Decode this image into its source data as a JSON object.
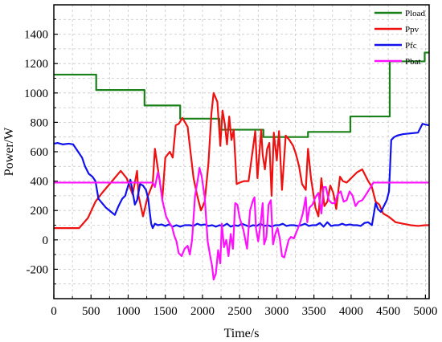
{
  "chart_data": {
    "type": "line",
    "xlabel": "Time/s",
    "ylabel": "Power/W",
    "xlim": [
      0,
      5050
    ],
    "ylim": [
      -400,
      1600
    ],
    "xticks": [
      0,
      500,
      1000,
      1500,
      2000,
      2500,
      3000,
      3500,
      4000,
      4500,
      5000
    ],
    "yticks": [
      -200,
      0,
      200,
      400,
      600,
      800,
      1000,
      1200,
      1400
    ],
    "grid": true,
    "legend_position": "top-right",
    "series": [
      {
        "name": "Pload",
        "color": "#1a801a",
        "points": [
          [
            0,
            1125
          ],
          [
            570,
            1125
          ],
          [
            570,
            1020
          ],
          [
            1220,
            1020
          ],
          [
            1220,
            915
          ],
          [
            1700,
            915
          ],
          [
            1700,
            825
          ],
          [
            2230,
            825
          ],
          [
            2230,
            750
          ],
          [
            2820,
            750
          ],
          [
            2820,
            700
          ],
          [
            3420,
            700
          ],
          [
            3420,
            735
          ],
          [
            3990,
            735
          ],
          [
            3990,
            840
          ],
          [
            4520,
            840
          ],
          [
            4520,
            1215
          ],
          [
            4990,
            1215
          ],
          [
            4990,
            1275
          ],
          [
            5050,
            1275
          ]
        ]
      },
      {
        "name": "Ppv",
        "color": "#ee1111",
        "points": [
          [
            0,
            80
          ],
          [
            340,
            80
          ],
          [
            460,
            150
          ],
          [
            560,
            260
          ],
          [
            650,
            320
          ],
          [
            750,
            380
          ],
          [
            900,
            470
          ],
          [
            980,
            420
          ],
          [
            1060,
            310
          ],
          [
            1120,
            470
          ],
          [
            1140,
            300
          ],
          [
            1200,
            160
          ],
          [
            1260,
            290
          ],
          [
            1330,
            380
          ],
          [
            1360,
            620
          ],
          [
            1410,
            450
          ],
          [
            1460,
            280
          ],
          [
            1500,
            560
          ],
          [
            1560,
            600
          ],
          [
            1600,
            560
          ],
          [
            1640,
            780
          ],
          [
            1680,
            790
          ],
          [
            1730,
            830
          ],
          [
            1800,
            770
          ],
          [
            1880,
            420
          ],
          [
            1930,
            300
          ],
          [
            1980,
            200
          ],
          [
            2030,
            260
          ],
          [
            2080,
            520
          ],
          [
            2120,
            860
          ],
          [
            2150,
            1000
          ],
          [
            2200,
            940
          ],
          [
            2240,
            640
          ],
          [
            2270,
            880
          ],
          [
            2300,
            790
          ],
          [
            2330,
            650
          ],
          [
            2360,
            840
          ],
          [
            2390,
            680
          ],
          [
            2420,
            750
          ],
          [
            2460,
            380
          ],
          [
            2500,
            390
          ],
          [
            2560,
            400
          ],
          [
            2620,
            400
          ],
          [
            2660,
            550
          ],
          [
            2710,
            740
          ],
          [
            2740,
            420
          ],
          [
            2790,
            750
          ],
          [
            2810,
            580
          ],
          [
            2840,
            480
          ],
          [
            2870,
            620
          ],
          [
            2900,
            660
          ],
          [
            2930,
            300
          ],
          [
            2960,
            730
          ],
          [
            3000,
            540
          ],
          [
            3030,
            740
          ],
          [
            3070,
            340
          ],
          [
            3120,
            710
          ],
          [
            3170,
            680
          ],
          [
            3220,
            640
          ],
          [
            3260,
            580
          ],
          [
            3300,
            500
          ],
          [
            3340,
            380
          ],
          [
            3390,
            340
          ],
          [
            3420,
            620
          ],
          [
            3460,
            420
          ],
          [
            3520,
            220
          ],
          [
            3560,
            160
          ],
          [
            3600,
            420
          ],
          [
            3640,
            230
          ],
          [
            3680,
            260
          ],
          [
            3720,
            370
          ],
          [
            3760,
            320
          ],
          [
            3800,
            210
          ],
          [
            3850,
            430
          ],
          [
            3890,
            400
          ],
          [
            3940,
            390
          ],
          [
            4000,
            420
          ],
          [
            4080,
            460
          ],
          [
            4150,
            480
          ],
          [
            4230,
            400
          ],
          [
            4280,
            360
          ],
          [
            4330,
            260
          ],
          [
            4380,
            240
          ],
          [
            4430,
            180
          ],
          [
            4500,
            160
          ],
          [
            4600,
            120
          ],
          [
            4700,
            110
          ],
          [
            4800,
            100
          ],
          [
            4900,
            95
          ],
          [
            5000,
            100
          ],
          [
            5050,
            100
          ]
        ]
      },
      {
        "name": "Pfc",
        "color": "#1111ee",
        "points": [
          [
            0,
            655
          ],
          [
            50,
            660
          ],
          [
            120,
            650
          ],
          [
            200,
            655
          ],
          [
            260,
            650
          ],
          [
            300,
            620
          ],
          [
            340,
            590
          ],
          [
            380,
            560
          ],
          [
            420,
            500
          ],
          [
            470,
            450
          ],
          [
            520,
            430
          ],
          [
            560,
            400
          ],
          [
            600,
            280
          ],
          [
            650,
            250
          ],
          [
            700,
            220
          ],
          [
            760,
            195
          ],
          [
            820,
            170
          ],
          [
            870,
            230
          ],
          [
            920,
            280
          ],
          [
            960,
            300
          ],
          [
            1000,
            370
          ],
          [
            1030,
            410
          ],
          [
            1060,
            330
          ],
          [
            1090,
            240
          ],
          [
            1120,
            270
          ],
          [
            1160,
            380
          ],
          [
            1200,
            370
          ],
          [
            1240,
            340
          ],
          [
            1270,
            280
          ],
          [
            1290,
            190
          ],
          [
            1310,
            110
          ],
          [
            1330,
            80
          ],
          [
            1360,
            110
          ],
          [
            1400,
            100
          ],
          [
            1450,
            105
          ],
          [
            1500,
            95
          ],
          [
            1550,
            105
          ],
          [
            1600,
            90
          ],
          [
            1650,
            100
          ],
          [
            1700,
            90
          ],
          [
            1760,
            100
          ],
          [
            1830,
            100
          ],
          [
            1880,
            95
          ],
          [
            1930,
            110
          ],
          [
            1980,
            100
          ],
          [
            2030,
            105
          ],
          [
            2080,
            95
          ],
          [
            2130,
            100
          ],
          [
            2180,
            90
          ],
          [
            2230,
            100
          ],
          [
            2280,
            95
          ],
          [
            2330,
            110
          ],
          [
            2380,
            90
          ],
          [
            2430,
            100
          ],
          [
            2480,
            95
          ],
          [
            2530,
            110
          ],
          [
            2580,
            100
          ],
          [
            2630,
            90
          ],
          [
            2680,
            100
          ],
          [
            2730,
            95
          ],
          [
            2780,
            110
          ],
          [
            2830,
            95
          ],
          [
            2880,
            100
          ],
          [
            2930,
            90
          ],
          [
            2980,
            100
          ],
          [
            3030,
            100
          ],
          [
            3080,
            110
          ],
          [
            3130,
            95
          ],
          [
            3180,
            100
          ],
          [
            3230,
            100
          ],
          [
            3280,
            95
          ],
          [
            3330,
            100
          ],
          [
            3380,
            110
          ],
          [
            3430,
            95
          ],
          [
            3480,
            100
          ],
          [
            3530,
            100
          ],
          [
            3580,
            115
          ],
          [
            3630,
            90
          ],
          [
            3680,
            120
          ],
          [
            3730,
            95
          ],
          [
            3780,
            100
          ],
          [
            3830,
            100
          ],
          [
            3880,
            110
          ],
          [
            3930,
            100
          ],
          [
            3980,
            105
          ],
          [
            4030,
            100
          ],
          [
            4080,
            100
          ],
          [
            4130,
            95
          ],
          [
            4180,
            115
          ],
          [
            4230,
            120
          ],
          [
            4280,
            100
          ],
          [
            4330,
            250
          ],
          [
            4360,
            210
          ],
          [
            4400,
            190
          ],
          [
            4440,
            230
          ],
          [
            4480,
            270
          ],
          [
            4510,
            330
          ],
          [
            4540,
            680
          ],
          [
            4580,
            700
          ],
          [
            4620,
            710
          ],
          [
            4700,
            720
          ],
          [
            4800,
            725
          ],
          [
            4900,
            730
          ],
          [
            4960,
            790
          ],
          [
            5000,
            785
          ],
          [
            5050,
            780
          ]
        ]
      },
      {
        "name": "Pbat",
        "color": "#ff11ff",
        "points": [
          [
            0,
            390
          ],
          [
            500,
            390
          ],
          [
            1000,
            390
          ],
          [
            1330,
            390
          ],
          [
            1360,
            360
          ],
          [
            1400,
            460
          ],
          [
            1420,
            420
          ],
          [
            1460,
            270
          ],
          [
            1510,
            160
          ],
          [
            1550,
            120
          ],
          [
            1590,
            90
          ],
          [
            1620,
            30
          ],
          [
            1650,
            -10
          ],
          [
            1680,
            -90
          ],
          [
            1720,
            -110
          ],
          [
            1760,
            -60
          ],
          [
            1800,
            -40
          ],
          [
            1830,
            -100
          ],
          [
            1860,
            0
          ],
          [
            1900,
            300
          ],
          [
            1940,
            420
          ],
          [
            1960,
            490
          ],
          [
            1990,
            430
          ],
          [
            2030,
            290
          ],
          [
            2070,
            -10
          ],
          [
            2100,
            -100
          ],
          [
            2130,
            -180
          ],
          [
            2150,
            -270
          ],
          [
            2180,
            -230
          ],
          [
            2210,
            -70
          ],
          [
            2240,
            -160
          ],
          [
            2260,
            110
          ],
          [
            2290,
            -50
          ],
          [
            2320,
            0
          ],
          [
            2350,
            -110
          ],
          [
            2380,
            40
          ],
          [
            2410,
            -60
          ],
          [
            2440,
            250
          ],
          [
            2470,
            240
          ],
          [
            2500,
            150
          ],
          [
            2550,
            70
          ],
          [
            2600,
            -60
          ],
          [
            2640,
            200
          ],
          [
            2680,
            270
          ],
          [
            2700,
            290
          ],
          [
            2720,
            80
          ],
          [
            2750,
            -10
          ],
          [
            2780,
            100
          ],
          [
            2810,
            250
          ],
          [
            2830,
            -30
          ],
          [
            2860,
            20
          ],
          [
            2890,
            240
          ],
          [
            2920,
            270
          ],
          [
            2950,
            -30
          ],
          [
            2980,
            40
          ],
          [
            3010,
            80
          ],
          [
            3040,
            10
          ],
          [
            3070,
            -110
          ],
          [
            3100,
            -120
          ],
          [
            3130,
            -60
          ],
          [
            3160,
            0
          ],
          [
            3190,
            20
          ],
          [
            3230,
            10
          ],
          [
            3270,
            60
          ],
          [
            3310,
            110
          ],
          [
            3350,
            180
          ],
          [
            3390,
            290
          ],
          [
            3410,
            120
          ],
          [
            3440,
            220
          ],
          [
            3480,
            240
          ],
          [
            3520,
            290
          ],
          [
            3560,
            320
          ],
          [
            3600,
            180
          ],
          [
            3630,
            360
          ],
          [
            3660,
            360
          ],
          [
            3700,
            270
          ],
          [
            3740,
            250
          ],
          [
            3780,
            250
          ],
          [
            3820,
            310
          ],
          [
            3860,
            330
          ],
          [
            3900,
            260
          ],
          [
            3940,
            270
          ],
          [
            3980,
            330
          ],
          [
            4020,
            300
          ],
          [
            4060,
            230
          ],
          [
            4100,
            260
          ],
          [
            4150,
            270
          ],
          [
            4190,
            300
          ],
          [
            4240,
            340
          ],
          [
            4300,
            390
          ],
          [
            4350,
            390
          ],
          [
            4500,
            390
          ],
          [
            5050,
            390
          ]
        ]
      }
    ]
  }
}
